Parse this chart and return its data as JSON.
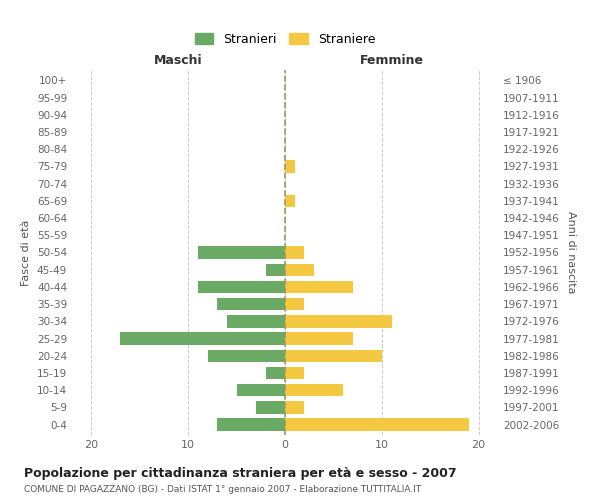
{
  "age_groups": [
    "0-4",
    "5-9",
    "10-14",
    "15-19",
    "20-24",
    "25-29",
    "30-34",
    "35-39",
    "40-44",
    "45-49",
    "50-54",
    "55-59",
    "60-64",
    "65-69",
    "70-74",
    "75-79",
    "80-84",
    "85-89",
    "90-94",
    "95-99",
    "100+"
  ],
  "birth_years": [
    "2002-2006",
    "1997-2001",
    "1992-1996",
    "1987-1991",
    "1982-1986",
    "1977-1981",
    "1972-1976",
    "1967-1971",
    "1962-1966",
    "1957-1961",
    "1952-1956",
    "1947-1951",
    "1942-1946",
    "1937-1941",
    "1932-1936",
    "1927-1931",
    "1922-1926",
    "1917-1921",
    "1912-1916",
    "1907-1911",
    "≤ 1906"
  ],
  "maschi": [
    7,
    3,
    5,
    2,
    8,
    17,
    6,
    7,
    9,
    2,
    9,
    0,
    0,
    0,
    0,
    0,
    0,
    0,
    0,
    0,
    0
  ],
  "femmine": [
    19,
    2,
    6,
    2,
    10,
    7,
    11,
    2,
    7,
    3,
    2,
    0,
    0,
    1,
    0,
    1,
    0,
    0,
    0,
    0,
    0
  ],
  "maschi_color": "#6aaa64",
  "femmine_color": "#f5c842",
  "title": "Popolazione per cittadinanza straniera per età e sesso - 2007",
  "subtitle": "COMUNE DI PAGAZZANO (BG) - Dati ISTAT 1° gennaio 2007 - Elaborazione TUTTITALIA.IT",
  "ylabel_left": "Fasce di età",
  "ylabel_right": "Anni di nascita",
  "xlabel_left": "Maschi",
  "xlabel_right": "Femmine",
  "legend_maschi": "Stranieri",
  "legend_femmine": "Straniere",
  "xlim": 22,
  "background_color": "#ffffff",
  "grid_color": "#cccccc"
}
